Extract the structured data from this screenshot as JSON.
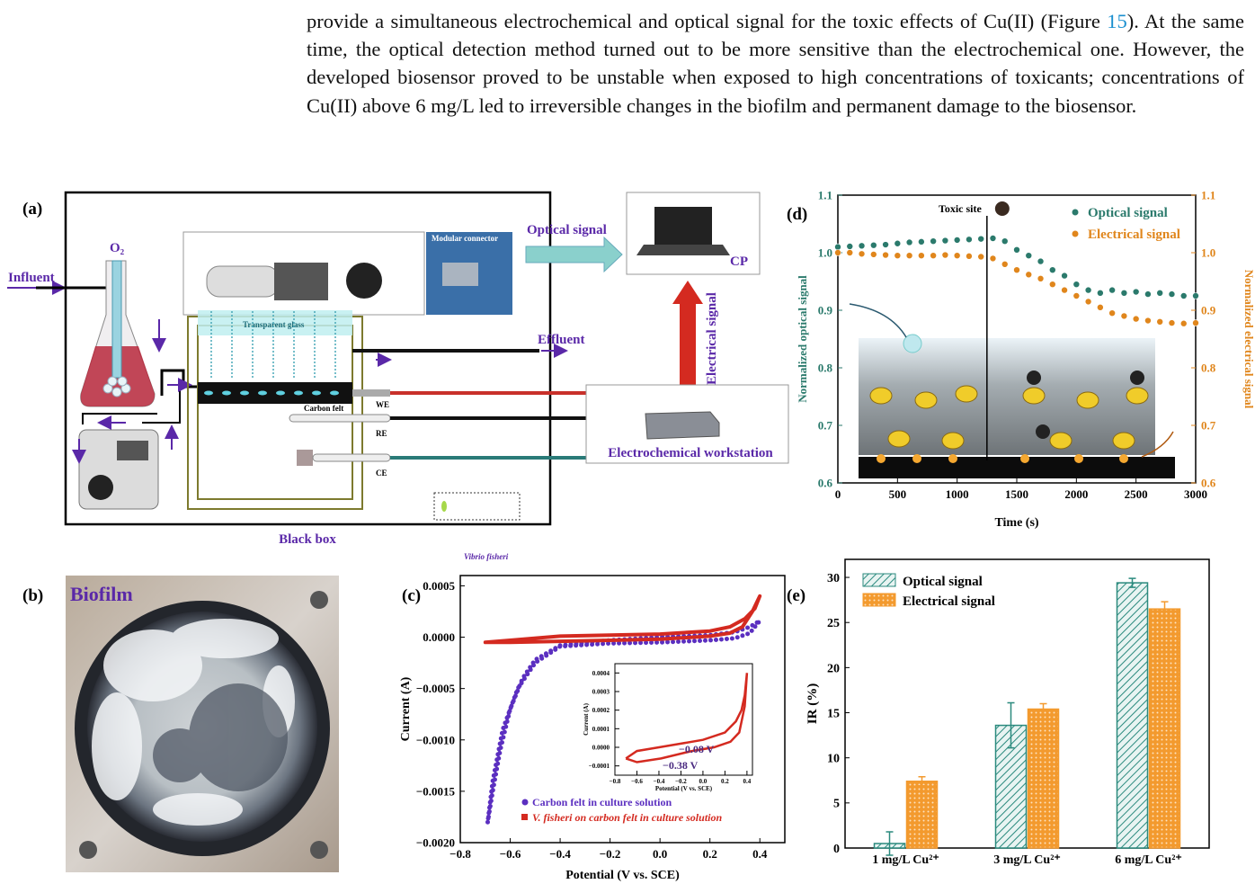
{
  "paragraph": {
    "before": "provide a simultaneous electrochemical and optical signal for the toxic effects of Cu(II) (Figure ",
    "link": "15",
    "after": "). At the same time, the optical detection method turned out to be more sensitive than the electrochemical one. However, the developed biosensor proved to be unstable when exposed to high concentrations of toxicants; concentrations of Cu(II) above 6 mg/L led to irreversible changes in the biofilm and permanent damage to the biosensor."
  },
  "diagram": {
    "panel": "(a)",
    "influent": "Influent",
    "oxygen": "O₂",
    "modular_connector": "Modular connector",
    "transparent_glass": "Transparent glass",
    "optical_signal": "Optical signal",
    "computer": "CP",
    "effluent": "Effluent",
    "electrical_signal": "Electrical signal",
    "carbon_felt": "Carbon felt",
    "we": "WE",
    "re": "RE",
    "ce": "CE",
    "workstation": "Electrochemical workstation",
    "black_box": "Black box",
    "organism": "Vibrio fisheri"
  },
  "photo": {
    "panel": "(b)",
    "title": "Biofilm"
  },
  "chart_data": [
    {
      "type": "line",
      "panel": "(c)",
      "x_label": "Potential (V vs. SCE)",
      "y_label": "Current (A)",
      "xlim": [
        -0.8,
        0.5
      ],
      "ylim": [
        -0.002,
        0.0006
      ],
      "xticks": [
        {
          "value": -0.8,
          "label": "−0.8"
        },
        {
          "value": -0.6,
          "label": "−0.6"
        },
        {
          "value": -0.4,
          "label": "−0.4"
        },
        {
          "value": -0.2,
          "label": "−0.2"
        },
        {
          "value": 0,
          "label": "0.0"
        },
        0.2,
        0.4
      ],
      "yticks": [
        0.0005,
        {
          "value": 0,
          "label": "0.0000"
        },
        {
          "value": -0.0005,
          "label": "−0.0005"
        },
        {
          "value": -0.001,
          "label": "−0.0010"
        },
        {
          "value": -0.0015,
          "label": "−0.0015"
        },
        {
          "value": -0.002,
          "label": "−0.0020"
        }
      ],
      "series": [
        {
          "name": "Carbon felt in culture solution",
          "color": "#5b2fc0",
          "x": [
            -0.69,
            -0.67,
            -0.64,
            -0.6,
            -0.55,
            -0.5,
            -0.4,
            -0.2,
            0,
            0.2,
            0.3,
            0.36,
            0.4,
            0.36,
            0.3,
            0.2,
            0,
            -0.2,
            -0.4,
            -0.5,
            -0.57,
            -0.63,
            -0.67,
            -0.69
          ],
          "values": [
            -0.0018,
            -0.0015,
            -0.0011,
            -0.0007,
            -0.0004,
            -0.00022,
            -8e-05,
            -3e-05,
            0,
            2e-05,
            5e-05,
            0.0001,
            0.00016,
            4e-05,
            -1e-05,
            -3e-05,
            -5e-05,
            -6e-05,
            -9e-05,
            -0.00025,
            -0.0005,
            -0.0009,
            -0.0014,
            -0.0018
          ]
        },
        {
          "name": "V. fisheri on carbon felt in culture solution",
          "color": "#d42a20",
          "x": [
            -0.7,
            -0.6,
            -0.4,
            -0.2,
            0,
            0.2,
            0.28,
            0.34,
            0.38,
            0.4,
            0.37,
            0.33,
            0.28,
            0.2,
            0,
            -0.2,
            -0.4,
            -0.6,
            -0.7
          ],
          "values": [
            -5e-05,
            -3e-05,
            1e-05,
            2e-05,
            3e-05,
            6e-05,
            0.0001,
            0.00018,
            0.00028,
            0.0004,
            0.00025,
            0.0001,
            4e-05,
            1e-05,
            -2e-05,
            -3e-05,
            -4e-05,
            -5e-05,
            -5e-05
          ]
        }
      ],
      "inset": {
        "x_label": "Potential (V vs. SCE)",
        "y_label": "Current (A)",
        "xlim": [
          -0.8,
          0.45
        ],
        "ylim": [
          -0.00015,
          0.00045
        ],
        "xticks": [
          {
            "value": -0.8,
            "label": "−0.8"
          },
          {
            "value": -0.6,
            "label": "−0.6"
          },
          {
            "value": -0.4,
            "label": "−0.4"
          },
          {
            "value": -0.2,
            "label": "−0.2"
          },
          {
            "value": 0,
            "label": "0.0"
          },
          0.2,
          0.4
        ],
        "yticks": [
          0.0004,
          0.0003,
          0.0002,
          0.0001,
          {
            "value": 0,
            "label": "0.0000"
          },
          {
            "value": -0.0001,
            "label": "−0.0001"
          }
        ],
        "series": [
          {
            "color": "#d42a20",
            "x": [
              -0.7,
              -0.6,
              -0.4,
              -0.2,
              0,
              0.2,
              0.3,
              0.35,
              0.38,
              0.4,
              0.38,
              0.33,
              0.25,
              0.1,
              -0.1,
              -0.38,
              -0.6,
              -0.7
            ],
            "values": [
              -6e-05,
              -2e-05,
              0,
              2e-05,
              4e-05,
              8e-05,
              0.00014,
              0.0002,
              0.00028,
              0.0004,
              0.00022,
              8e-05,
              3e-05,
              0,
              -2e-05,
              -6e-05,
              -8e-05,
              -6e-05
            ]
          }
        ],
        "annotations": [
          "−0.08 V",
          "−0.38 V"
        ]
      }
    },
    {
      "type": "scatter",
      "panel": "(d)",
      "x_label": "Time (s)",
      "y_label": "Normalized optical signal",
      "y2_label": "Normalized electrical signal",
      "annotation": {
        "text": "Toxic site",
        "x": 1250
      },
      "xlim": [
        0,
        3000
      ],
      "ylim": [
        0.6,
        1.1
      ],
      "y2lim": [
        0.6,
        1.1
      ],
      "xticks": [
        0,
        500,
        1000,
        1500,
        2000,
        2500,
        3000
      ],
      "yticks": [
        0.6,
        0.7,
        0.8,
        0.9,
        {
          "value": 1,
          "label": "1.0"
        },
        1.1
      ],
      "y2ticks": [
        0.6,
        0.7,
        0.8,
        0.9,
        {
          "value": 1,
          "label": "1.0"
        },
        1.1
      ],
      "x": [
        0,
        100,
        200,
        300,
        400,
        500,
        600,
        700,
        800,
        900,
        1000,
        1100,
        1200,
        1300,
        1400,
        1500,
        1600,
        1700,
        1800,
        1900,
        2000,
        2100,
        2200,
        2300,
        2400,
        2500,
        2600,
        2700,
        2800,
        2900,
        3000
      ],
      "series": [
        {
          "name": "Optical signal",
          "color": "#2b7a6c",
          "values": [
            1.01,
            1.011,
            1.012,
            1.013,
            1.014,
            1.016,
            1.018,
            1.019,
            1.02,
            1.021,
            1.022,
            1.023,
            1.024,
            1.025,
            1.02,
            1.005,
            0.995,
            0.985,
            0.97,
            0.96,
            0.945,
            0.935,
            0.93,
            0.935,
            0.93,
            0.932,
            0.928,
            0.93,
            0.928,
            0.925,
            0.925
          ]
        },
        {
          "name": "Electrical signal",
          "color": "#e0861c",
          "axis": "y2",
          "values": [
            1.0,
            1.0,
            0.998,
            0.997,
            0.996,
            0.995,
            0.995,
            0.995,
            0.995,
            0.996,
            0.995,
            0.994,
            0.993,
            0.99,
            0.98,
            0.97,
            0.962,
            0.955,
            0.945,
            0.935,
            0.925,
            0.915,
            0.905,
            0.895,
            0.89,
            0.885,
            0.882,
            0.88,
            0.878,
            0.877,
            0.878
          ]
        }
      ]
    },
    {
      "type": "bar",
      "panel": "(e)",
      "y_label": "IR (%)",
      "categories": [
        "1 mg/L Cu²⁺",
        "3 mg/L Cu²⁺",
        "6 mg/L Cu²⁺"
      ],
      "ylim": [
        0,
        32
      ],
      "yticks": [
        0,
        5,
        10,
        15,
        20,
        25,
        30
      ],
      "series": [
        {
          "name": "Optical signal",
          "color": "#2b8a7e",
          "values": [
            0.5,
            13.6,
            29.4
          ],
          "errors": [
            1.3,
            2.5,
            0.5
          ]
        },
        {
          "name": "Electrical signal",
          "color": "#f39a2e",
          "values": [
            7.4,
            15.4,
            26.5
          ],
          "errors": [
            0.5,
            0.6,
            0.8
          ]
        }
      ]
    }
  ]
}
